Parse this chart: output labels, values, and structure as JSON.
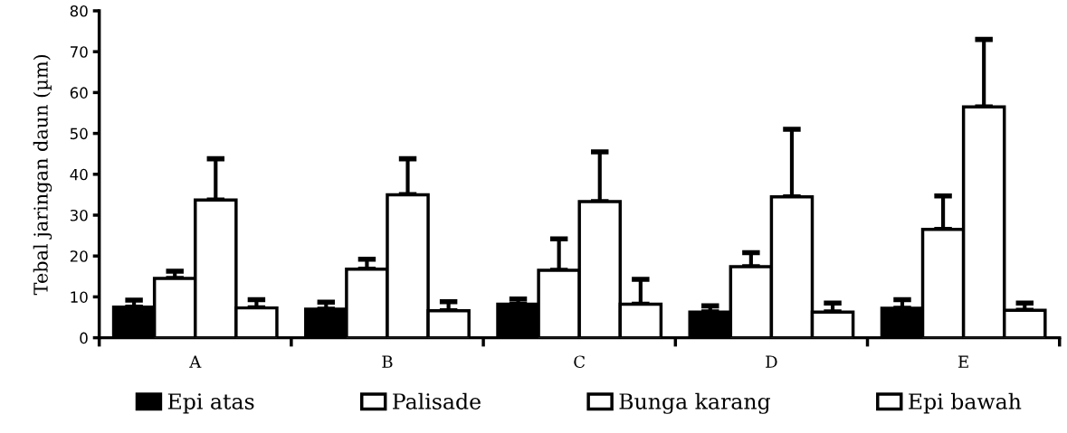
{
  "chart_data": {
    "type": "bar",
    "ylabel": "Tebal jaringan daun (µm)",
    "categories": [
      "A",
      "B",
      "C",
      "D",
      "E"
    ],
    "series": [
      {
        "name": "Epi atas",
        "color": "#000000",
        "values": [
          7.5,
          7.0,
          8.2,
          6.3,
          7.2
        ],
        "errors": [
          [
            7.5,
            9.2
          ],
          [
            7.0,
            8.7
          ],
          [
            8.2,
            9.5
          ],
          [
            6.3,
            7.8
          ],
          [
            7.2,
            9.3
          ]
        ]
      },
      {
        "name": "Palisade",
        "color": "#ffffff",
        "values": [
          14.5,
          16.8,
          16.5,
          17.4,
          26.5
        ],
        "errors": [
          [
            14.5,
            16.3
          ],
          [
            16.8,
            19.2
          ],
          [
            16.5,
            24.2
          ],
          [
            17.4,
            20.8
          ],
          [
            26.5,
            34.7
          ]
        ]
      },
      {
        "name": "Bunga karang",
        "color": "#ffffff",
        "values": [
          33.7,
          35.0,
          33.3,
          34.5,
          56.5
        ],
        "errors": [
          [
            33.7,
            43.8
          ],
          [
            35.0,
            43.8
          ],
          [
            33.3,
            45.5
          ],
          [
            34.5,
            51.0
          ],
          [
            56.5,
            73.0
          ]
        ]
      },
      {
        "name": "Epi bawah",
        "color": "#ffffff",
        "values": [
          7.3,
          6.6,
          8.2,
          6.3,
          6.7
        ],
        "errors": [
          [
            7.3,
            9.3
          ],
          [
            6.6,
            8.8
          ],
          [
            8.2,
            14.3
          ],
          [
            6.3,
            8.5
          ],
          [
            6.7,
            8.5
          ]
        ]
      }
    ],
    "ylim": [
      0,
      80
    ],
    "yticks": [
      0,
      10,
      20,
      30,
      40,
      50,
      60,
      70,
      80
    ],
    "grid": false,
    "legend": "bottom"
  }
}
